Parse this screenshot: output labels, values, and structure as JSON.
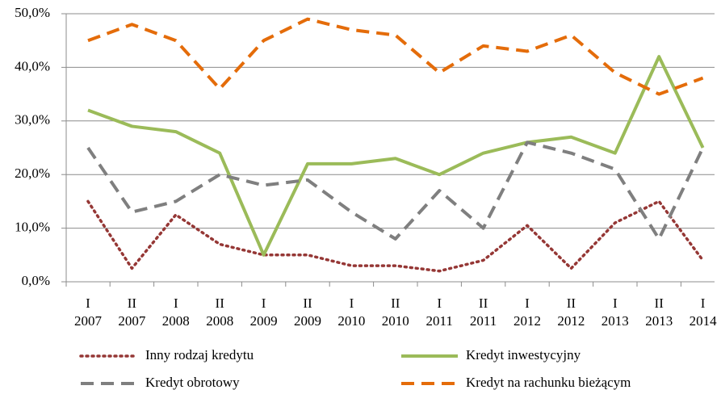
{
  "chart_data": {
    "type": "line",
    "categories": [
      [
        "I",
        "2007"
      ],
      [
        "II",
        "2007"
      ],
      [
        "I",
        "2008"
      ],
      [
        "II",
        "2008"
      ],
      [
        "I",
        "2009"
      ],
      [
        "II",
        "2009"
      ],
      [
        "I",
        "2010"
      ],
      [
        "II",
        "2010"
      ],
      [
        "I",
        "2011"
      ],
      [
        "II",
        "2011"
      ],
      [
        "I",
        "2012"
      ],
      [
        "II",
        "2012"
      ],
      [
        "I",
        "2013"
      ],
      [
        "II",
        "2013"
      ],
      [
        "I",
        "2014"
      ]
    ],
    "series": [
      {
        "name": "Inny rodzaj kredytu",
        "color": "#953735",
        "style": "dotted",
        "values": [
          15,
          2.5,
          12.5,
          7,
          5,
          5,
          3,
          3,
          2,
          4,
          10.5,
          2.5,
          11,
          15,
          4
        ]
      },
      {
        "name": "Kredyt inwestycyjny",
        "color": "#9bbb59",
        "style": "solid",
        "values": [
          32,
          29,
          28,
          24,
          5,
          22,
          22,
          23,
          20,
          24,
          26,
          27,
          24,
          42,
          25
        ]
      },
      {
        "name": "Kredyt obrotowy",
        "color": "#7f7f7f",
        "style": "dashed",
        "values": [
          25,
          13,
          15,
          20,
          18,
          19,
          13,
          8,
          17,
          10,
          26,
          24,
          21,
          8,
          25
        ]
      },
      {
        "name": "Kredyt na rachunku bieżącym",
        "color": "#e46c0a",
        "style": "dashed",
        "values": [
          45,
          48,
          45,
          36,
          45,
          49,
          47,
          46,
          39,
          44,
          43,
          46,
          39,
          35,
          38
        ]
      }
    ],
    "ylim": [
      0,
      50
    ],
    "yticks": [
      {
        "value": 0,
        "label": "0,0%"
      },
      {
        "value": 10,
        "label": "10,0%"
      },
      {
        "value": 20,
        "label": "20,0%"
      },
      {
        "value": 30,
        "label": "30,0%"
      },
      {
        "value": 40,
        "label": "40,0%"
      },
      {
        "value": 50,
        "label": "50,0%"
      }
    ],
    "grid": true,
    "legend": "bottom"
  }
}
